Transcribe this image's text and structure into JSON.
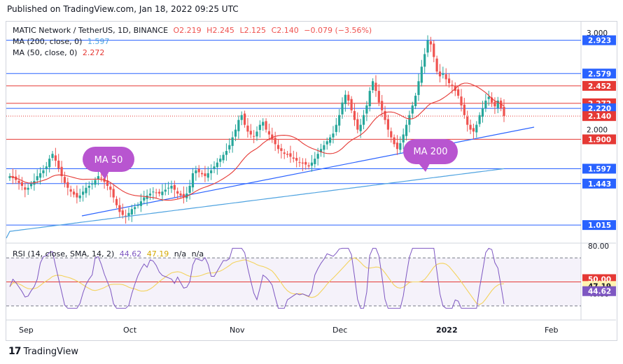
{
  "header": {
    "published": "Published on TradingView.com, Jan 18, 2022 09:25 UTC"
  },
  "legend": {
    "symbol": "MATIC Network / TetherUS, 1D, BINANCE",
    "ohlc": {
      "o": "O2.219",
      "h": "H2.245",
      "l": "L2.125",
      "c": "C2.140",
      "chg": "−0.079 (−3.56%)"
    },
    "ma200": {
      "label": "MA (200, close, 0)",
      "value": "1.597"
    },
    "ma50": {
      "label": "MA (50, close, 0)",
      "value": "2.272"
    },
    "rsi": {
      "label": "RSI (14, close, SMA, 14, 2)",
      "v1": "44.62",
      "v2": "47.19",
      "v3": "n/a",
      "v4": "n/a"
    }
  },
  "annotations": {
    "ma50": "MA 50",
    "ma200": "MA 200"
  },
  "footer": {
    "brand": "TradingView"
  },
  "colors": {
    "up": "#26a69a",
    "down": "#ef5350",
    "ma50": "#e53935",
    "ma200": "#4fa3e0",
    "blue": "#2962ff",
    "rsi": "#7e57c2",
    "rsiSma": "#f4d35e",
    "bubble": "#b855d0"
  },
  "chart_data": {
    "type": "candlestick",
    "title": "MATIC Network / TetherUS, 1D, BINANCE",
    "x_ticks": [
      "Sep",
      "Oct",
      "Nov",
      "Dec",
      "2022",
      "Feb"
    ],
    "y_ticks": [
      "3.000",
      "2.000"
    ],
    "price_range": [
      0.85,
      3.05
    ],
    "levels": [
      {
        "value": 2.923,
        "label": "2.923",
        "color": "#2962ff"
      },
      {
        "value": 2.579,
        "label": "2.579",
        "color": "#2962ff"
      },
      {
        "value": 2.452,
        "label": "2.452",
        "color": "#e53935"
      },
      {
        "value": 2.272,
        "label": "2.272",
        "color": "#e53935"
      },
      {
        "value": 2.22,
        "label": "2.220",
        "color": "#2962ff"
      },
      {
        "value": 2.14,
        "label": "2.140",
        "color": "#e53935"
      },
      {
        "value": 1.9,
        "label": "1.900",
        "color": "#e53935"
      },
      {
        "value": 1.597,
        "label": "1.597",
        "color": "#2962ff"
      },
      {
        "value": 1.443,
        "label": "1.443",
        "color": "#2962ff"
      },
      {
        "value": 1.015,
        "label": "1.015",
        "color": "#2962ff"
      }
    ],
    "close_series": [
      1.52,
      1.5,
      1.48,
      1.45,
      1.42,
      1.38,
      1.4,
      1.44,
      1.47,
      1.52,
      1.55,
      1.58,
      1.62,
      1.7,
      1.75,
      1.68,
      1.6,
      1.52,
      1.45,
      1.4,
      1.36,
      1.33,
      1.3,
      1.32,
      1.36,
      1.4,
      1.42,
      1.44,
      1.48,
      1.52,
      1.5,
      1.46,
      1.42,
      1.38,
      1.3,
      1.22,
      1.15,
      1.12,
      1.1,
      1.14,
      1.18,
      1.2,
      1.22,
      1.26,
      1.3,
      1.32,
      1.34,
      1.36,
      1.35,
      1.34,
      1.36,
      1.38,
      1.4,
      1.42,
      1.38,
      1.34,
      1.32,
      1.3,
      1.34,
      1.42,
      1.55,
      1.58,
      1.56,
      1.54,
      1.52,
      1.55,
      1.58,
      1.62,
      1.66,
      1.7,
      1.74,
      1.78,
      1.84,
      1.92,
      2.0,
      2.1,
      2.15,
      2.05,
      1.98,
      1.95,
      1.93,
      1.98,
      2.05,
      2.08,
      2.0,
      1.95,
      1.9,
      1.85,
      1.8,
      1.78,
      1.75,
      1.74,
      1.72,
      1.7,
      1.68,
      1.66,
      1.65,
      1.64,
      1.62,
      1.66,
      1.7,
      1.75,
      1.8,
      1.84,
      1.88,
      1.92,
      1.96,
      2.05,
      2.15,
      2.28,
      2.36,
      2.3,
      2.2,
      2.1,
      2.0,
      2.05,
      2.15,
      2.25,
      2.4,
      2.5,
      2.4,
      2.28,
      2.2,
      2.1,
      2.0,
      1.92,
      1.85,
      1.8,
      1.86,
      1.95,
      2.05,
      2.15,
      2.25,
      2.35,
      2.5,
      2.65,
      2.78,
      2.92,
      2.88,
      2.75,
      2.6,
      2.55,
      2.58,
      2.52,
      2.48,
      2.45,
      2.4,
      2.35,
      2.25,
      2.15,
      2.05,
      2.0,
      1.98,
      2.05,
      2.15,
      2.22,
      2.3,
      2.34,
      2.28,
      2.24,
      2.3,
      2.22,
      2.14
    ],
    "rsi": {
      "range": [
        20,
        80
      ],
      "ticks": [
        "80.00",
        "50.00",
        "40.00"
      ],
      "overbought": 70,
      "oversold": 30,
      "last": 44.62,
      "sma_last": 47.19
    }
  }
}
